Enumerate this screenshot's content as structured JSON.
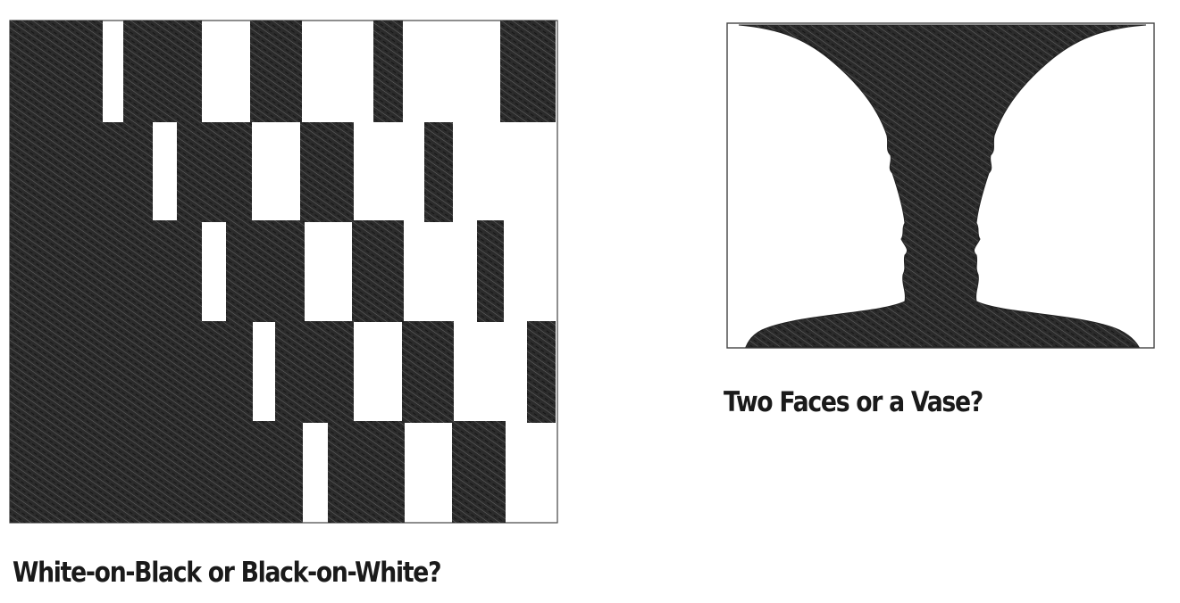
{
  "figures": {
    "checker": {
      "caption": "White-on-Black or Black-on-White?",
      "fill_color": "#2b2b2b"
    },
    "vase": {
      "caption": "Two Faces or a Vase?",
      "fill_color": "#2b2b2b"
    }
  }
}
